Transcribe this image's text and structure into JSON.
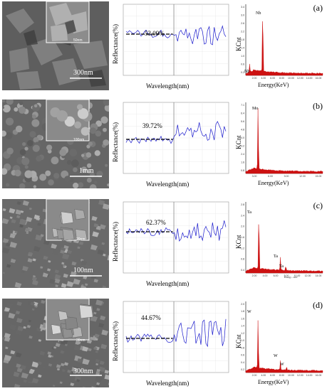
{
  "panels": [
    {
      "label": "(a)",
      "sem": {
        "scale": "300nm",
        "inset_scale": "50nm",
        "tone": "#6e6e6e"
      },
      "reflectance": {
        "value_label": "53.09%",
        "ylabel": "Reflectance(%)",
        "xlabel": "Wavelength(nm)"
      },
      "eds": {
        "ylabel": "KCnt",
        "xlabel": "Energy(KeV)",
        "yticks": [
          "3.4",
          "3.0",
          "2.6",
          "2.2",
          "1.8",
          "1.4",
          "1.0",
          "0.6",
          "0.2"
        ],
        "xticks": [
          "2.00",
          "4.00",
          "6.00",
          "8.00",
          "10.00",
          "12.00",
          "14.00",
          "16.00"
        ],
        "peaks": [
          {
            "label": "Nb"
          },
          {
            "label": "Nb"
          }
        ]
      }
    },
    {
      "label": "(b)",
      "sem": {
        "scale": "1mm",
        "inset_scale": "100nm",
        "tone": "#767676"
      },
      "reflectance": {
        "value_label": "39.72%",
        "ylabel": "Reflectance(%)",
        "xlabel": "Wavelength(nm)"
      },
      "eds": {
        "ylabel": "KCnt",
        "xlabel": "Energy(KeV)",
        "yticks": [
          "7.1",
          "6.4",
          "5.6",
          "4.8",
          "4.0",
          "3.2",
          "2.4",
          "1.6",
          "0.8"
        ],
        "xticks": [
          "3.00",
          "6.00",
          "9.00",
          "12.00",
          "15.00"
        ],
        "peaks": [
          {
            "label": "Mo"
          }
        ]
      }
    },
    {
      "label": "(c)",
      "sem": {
        "scale": "100nm",
        "inset_scale": "20nm",
        "tone": "#7a7a7a"
      },
      "reflectance": {
        "value_label": "62.37%",
        "ylabel": "Reflectance(%)",
        "xlabel": "Wavelength(nm)"
      },
      "eds": {
        "ylabel": "KCnt",
        "xlabel": "Energy - keV",
        "yticks": [
          "2.8",
          "2.4",
          "2.0",
          "1.6",
          "1.2",
          "0.8",
          "0.4"
        ],
        "xticks": [
          "2.00",
          "4.00",
          "6.00",
          "8.00",
          "10.00",
          "12.00",
          "14.00"
        ],
        "peaks": [
          {
            "label": "Ta"
          },
          {
            "label": "Ta"
          },
          {
            "label": "Ta"
          }
        ]
      }
    },
    {
      "label": "(d)",
      "sem": {
        "scale": "300nm",
        "inset_scale": "30nm",
        "tone": "#727272"
      },
      "reflectance": {
        "value_label": "44.67%",
        "ylabel": "Reflectance(%)",
        "xlabel": "Wavelength(nm)"
      },
      "eds": {
        "ylabel": "KCnt",
        "xlabel": "Energy(KeV)",
        "yticks": [
          "2.0",
          "1.8",
          "1.6",
          "1.4",
          "1.2",
          "1.0",
          "0.8",
          "0.6",
          "0.4",
          "0.2"
        ],
        "xticks": [
          "2.00",
          "4.00",
          "6.00",
          "8.00",
          "10.00",
          "12.00",
          "14.00",
          "16.00"
        ],
        "peaks": [
          {
            "label": "W"
          },
          {
            "label": "W"
          },
          {
            "label": "W"
          }
        ]
      }
    }
  ],
  "colors": {
    "line": "#1a1acc",
    "eds": "#cc1111",
    "dash": "#000000"
  }
}
